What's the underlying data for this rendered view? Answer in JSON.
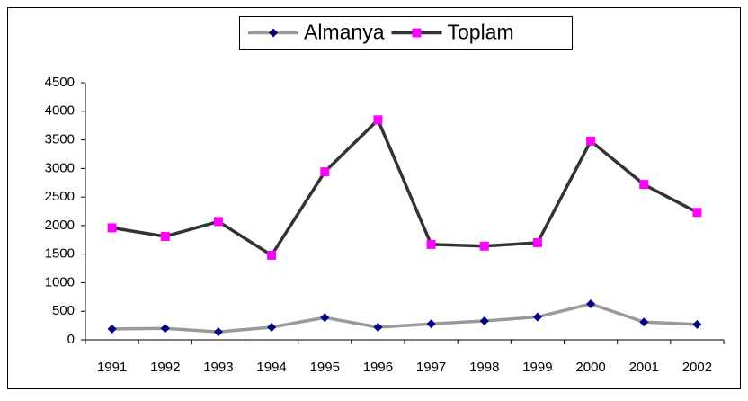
{
  "chart_data": {
    "type": "line",
    "categories": [
      "1991",
      "1992",
      "1993",
      "1994",
      "1995",
      "1996",
      "1997",
      "1998",
      "1999",
      "2000",
      "2001",
      "2002"
    ],
    "series": [
      {
        "name": "Almanya",
        "color": "#999999",
        "marker_color": "#000080",
        "marker": "diamond",
        "values": [
          190,
          200,
          140,
          220,
          390,
          220,
          280,
          330,
          400,
          630,
          310,
          270
        ]
      },
      {
        "name": "Toplam",
        "color": "#333333",
        "marker_color": "#ff00ff",
        "marker": "square",
        "values": [
          1960,
          1810,
          2070,
          1480,
          2940,
          3850,
          1670,
          1640,
          1700,
          3480,
          2720,
          2230
        ]
      }
    ],
    "ylim": [
      0,
      4500
    ],
    "yticks": [
      0,
      500,
      1000,
      1500,
      2000,
      2500,
      3000,
      3500,
      4000,
      4500
    ],
    "grid": false,
    "legend": "top"
  }
}
